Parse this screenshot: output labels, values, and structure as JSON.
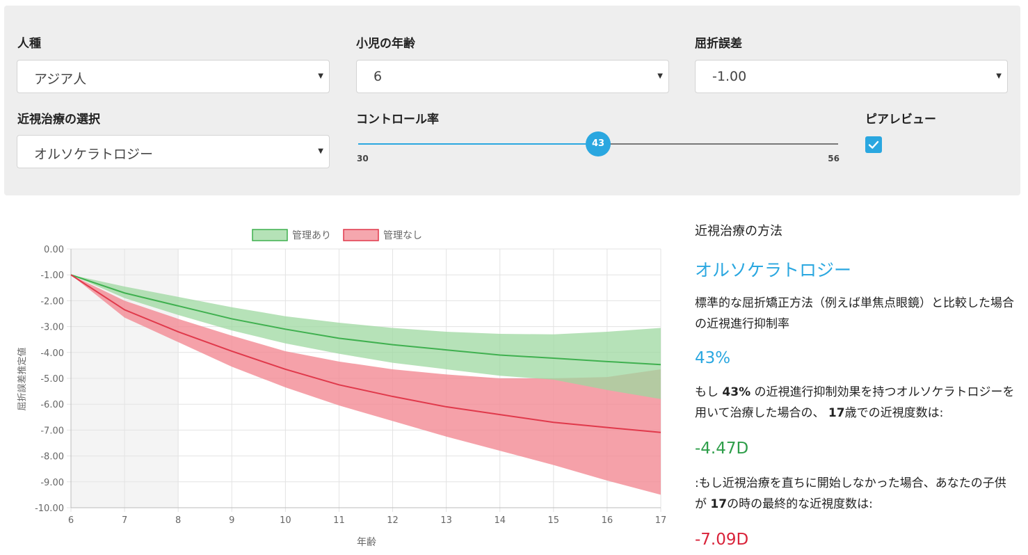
{
  "controls": {
    "race": {
      "label": "人種",
      "value": "アジア人"
    },
    "age": {
      "label": "小児の年齢",
      "value": "6"
    },
    "refraction": {
      "label": "屈折誤差",
      "value": "-1.00"
    },
    "treatment": {
      "label": "近視治療の選択",
      "value": "オルソケラトロジー"
    },
    "control_rate": {
      "label": "コントロール率",
      "value": 43,
      "value_text": "43",
      "min": 30,
      "min_text": "30",
      "max": 56,
      "max_text": "56"
    },
    "peer_review": {
      "label": "ピアレビュー",
      "checked": true
    }
  },
  "colors": {
    "accent": "#2aa7e0",
    "green_line": "#3fb04f",
    "green_fill": "#9dd8a0",
    "red_line": "#e0394b",
    "red_fill": "#f28a94",
    "green_text": "#2e9e4a",
    "red_text": "#d9233a"
  },
  "chart_data": {
    "type": "line",
    "xlabel": "年齢",
    "ylabel": "屈折誤差推定値",
    "x": [
      6,
      7,
      8,
      9,
      10,
      11,
      12,
      13,
      14,
      15,
      16,
      17
    ],
    "xlim": [
      6,
      17
    ],
    "ylim": [
      -10,
      0
    ],
    "xticks": [
      "6",
      "7",
      "8",
      "9",
      "10",
      "11",
      "12",
      "13",
      "14",
      "15",
      "16",
      "17"
    ],
    "yticks": [
      "0.00",
      "-1.00",
      "-2.00",
      "-3.00",
      "-4.00",
      "-5.00",
      "-6.00",
      "-7.00",
      "-8.00",
      "-9.00",
      "-10.00"
    ],
    "shaded_x_range": [
      6,
      8
    ],
    "series": [
      {
        "name": "管理あり",
        "values": [
          -1.0,
          -1.7,
          -2.2,
          -2.7,
          -3.1,
          -3.45,
          -3.7,
          -3.9,
          -4.1,
          -4.22,
          -4.35,
          -4.47
        ],
        "upper": [
          -1.0,
          -1.45,
          -1.85,
          -2.25,
          -2.6,
          -2.85,
          -3.05,
          -3.2,
          -3.28,
          -3.3,
          -3.2,
          -3.05
        ],
        "lower": [
          -1.0,
          -1.9,
          -2.55,
          -3.15,
          -3.65,
          -4.05,
          -4.4,
          -4.65,
          -4.9,
          -5.05,
          -5.45,
          -5.8
        ]
      },
      {
        "name": "管理なし",
        "values": [
          -1.0,
          -2.35,
          -3.2,
          -3.95,
          -4.65,
          -5.25,
          -5.7,
          -6.1,
          -6.4,
          -6.7,
          -6.9,
          -7.09
        ],
        "upper": [
          -1.0,
          -2.0,
          -2.7,
          -3.35,
          -3.95,
          -4.35,
          -4.65,
          -4.85,
          -5.0,
          -5.0,
          -4.95,
          -4.65
        ],
        "lower": [
          -1.0,
          -2.65,
          -3.6,
          -4.55,
          -5.35,
          -6.05,
          -6.65,
          -7.25,
          -7.8,
          -8.35,
          -8.95,
          -9.5
        ]
      }
    ]
  },
  "side": {
    "heading": "近視治療の方法",
    "treatment": "オルソケラトロジー",
    "description": "標準的な屈折矯正方法（例えば単焦点眼鏡）と比較した場合の近視進行抑制率",
    "rate": "43%",
    "line1_pre": "もし",
    "line1_rate": "43%",
    "line1_mid": "の近視進行抑制効果を持つオルソケラトロジーを用いて治療した場合の、",
    "line1_age": "17",
    "line1_post": "歳での近視度数は:",
    "result_treated": "-4.47D",
    "line2_pre": ":もし近視治療を直ちに開始しなかった場合、あなたの子供が",
    "line2_age": "17",
    "line2_post": "の時の最終的な近視度数は:",
    "result_untreated": "-7.09D"
  }
}
